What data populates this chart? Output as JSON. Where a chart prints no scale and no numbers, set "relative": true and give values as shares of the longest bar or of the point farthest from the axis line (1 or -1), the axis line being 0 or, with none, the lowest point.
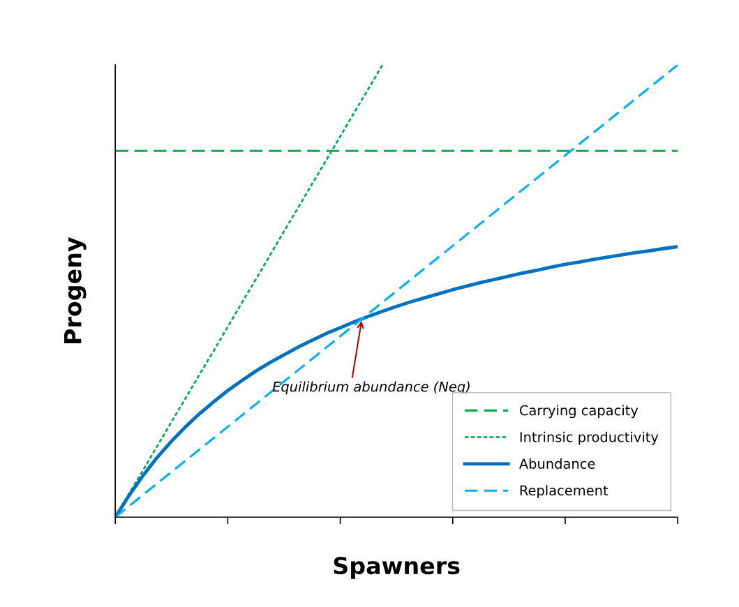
{
  "chart_data": {
    "type": "line",
    "relative": true,
    "xlabel": "Spawners",
    "ylabel": "Progeny",
    "legend": "bottom right",
    "grid": false,
    "categories": [
      null,
      null,
      null,
      null,
      null,
      null,
      null,
      null,
      null,
      null,
      null,
      null,
      null,
      null,
      null,
      null,
      null,
      null,
      null,
      null,
      null,
      null,
      null,
      null,
      null,
      null,
      null,
      null,
      null,
      null,
      null,
      null,
      null,
      null,
      null,
      null,
      null,
      null,
      null,
      null,
      null
    ],
    "series": [
      {
        "name": "Carrying capacity",
        "color": "#00b050",
        "line_style": "dashed",
        "values": [
          0.81,
          0.81,
          0.81,
          0.81,
          0.81,
          0.81,
          0.81,
          0.81,
          0.81,
          0.81,
          0.81,
          0.81,
          0.81,
          0.81,
          0.81,
          0.81,
          0.81,
          0.81,
          0.81,
          0.81,
          0.81,
          0.81,
          0.81,
          0.81,
          0.81,
          0.81,
          0.81,
          0.81,
          0.81,
          0.81,
          0.81,
          0.81,
          0.81,
          0.81,
          0.81,
          0.81,
          0.81,
          0.81,
          0.81,
          0.81,
          0.81
        ]
      },
      {
        "name": "Intrinsic productivity",
        "color": "#00b050",
        "line_style": "dotted",
        "values": [
          0,
          0.053,
          0.105,
          0.158,
          0.211,
          0.263,
          0.316,
          0.368,
          0.421,
          0.474,
          0.526,
          0.579,
          0.632,
          0.684,
          0.737,
          0.789,
          0.842,
          0.895,
          0.947,
          1.0,
          null,
          null,
          null,
          null,
          null,
          null,
          null,
          null,
          null,
          null,
          null,
          null,
          null,
          null,
          null,
          null,
          null,
          null,
          null,
          null,
          null
        ]
      },
      {
        "name": "Abundance",
        "color": "#0070c0",
        "line_style": "solid",
        "values": [
          0,
          0.049,
          0.093,
          0.133,
          0.168,
          0.2,
          0.229,
          0.255,
          0.28,
          0.302,
          0.323,
          0.342,
          0.359,
          0.376,
          0.391,
          0.406,
          0.419,
          0.432,
          0.444,
          0.455,
          0.466,
          0.476,
          0.485,
          0.494,
          0.503,
          0.511,
          0.519,
          0.526,
          0.533,
          0.54,
          0.546,
          0.553,
          0.559,
          0.564,
          0.57,
          0.575,
          0.58,
          0.585,
          0.589,
          0.594,
          0.598
        ]
      },
      {
        "name": "Replacement",
        "color": "#00b0f0",
        "line_style": "dashed",
        "values": [
          0,
          0.025,
          0.05,
          0.075,
          0.1,
          0.125,
          0.15,
          0.175,
          0.2,
          0.225,
          0.25,
          0.275,
          0.3,
          0.325,
          0.35,
          0.375,
          0.4,
          0.425,
          0.45,
          0.475,
          0.5,
          0.525,
          0.55,
          0.575,
          0.6,
          0.625,
          0.65,
          0.675,
          0.7,
          0.725,
          0.75,
          0.775,
          0.8,
          0.825,
          0.85,
          0.875,
          0.9,
          0.925,
          0.95,
          0.975,
          1.0
        ]
      }
    ],
    "annotations": [
      "Equilibrium abundance (Neq)"
    ]
  }
}
